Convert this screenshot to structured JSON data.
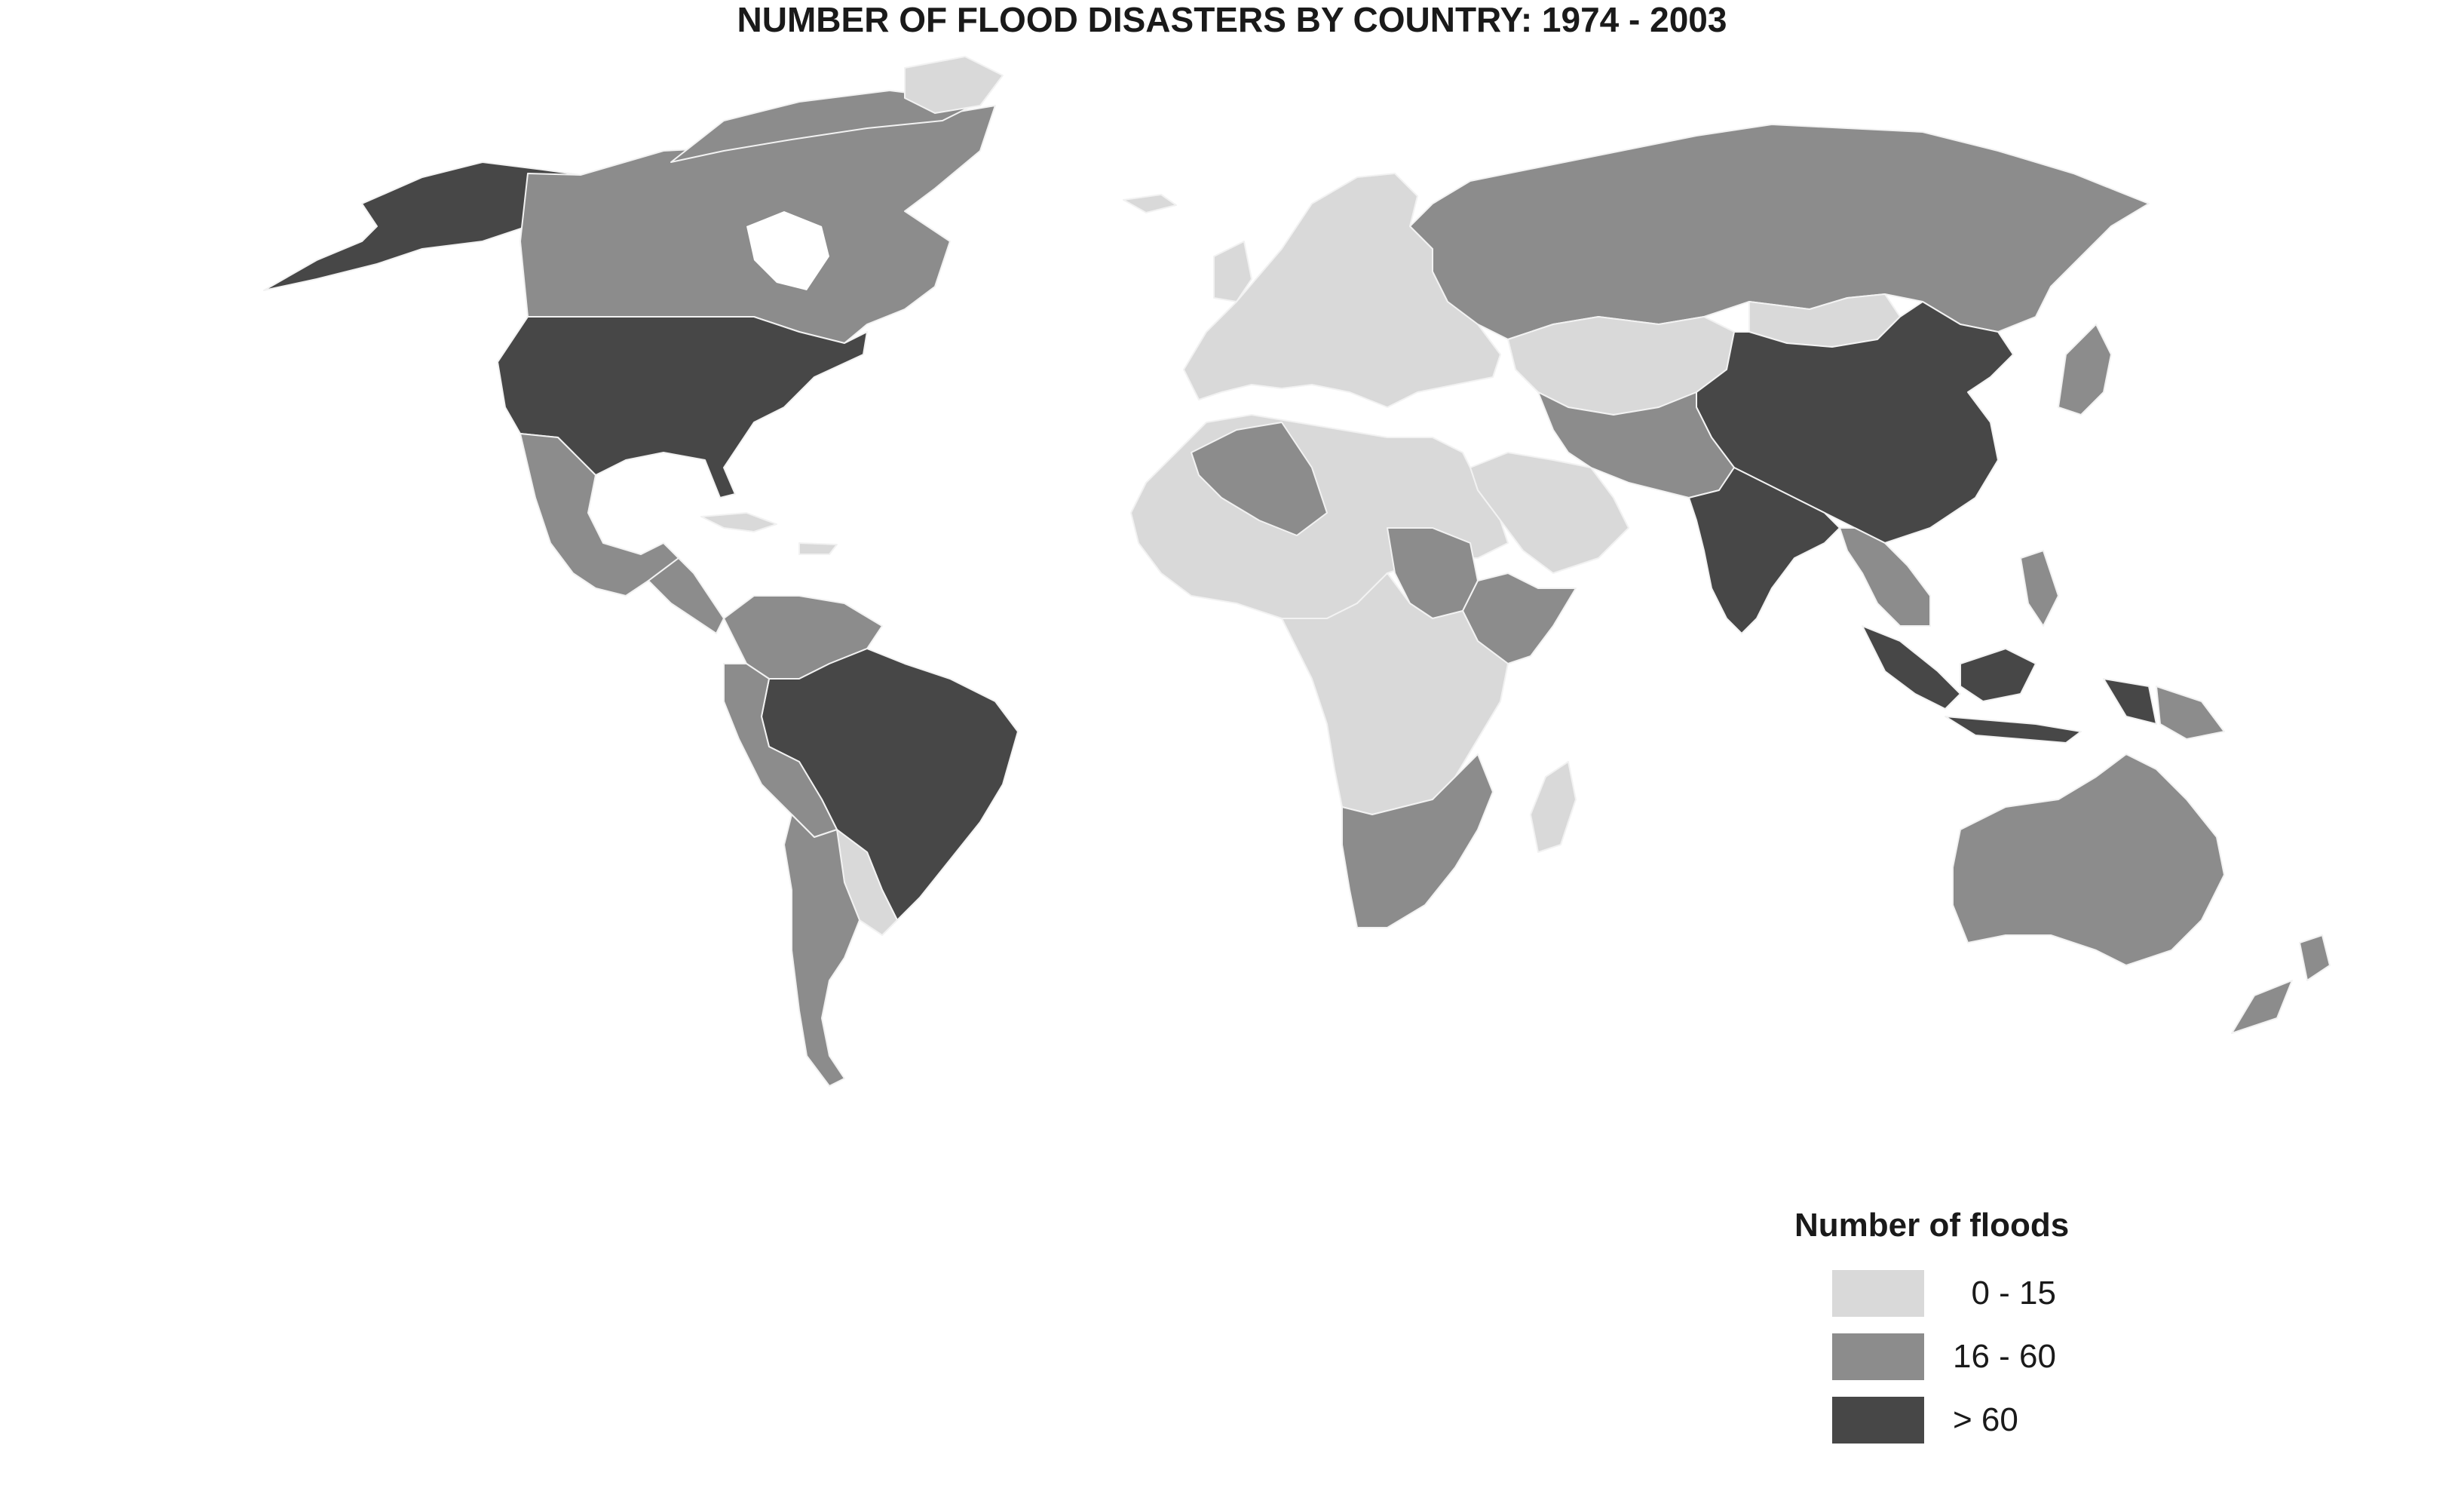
{
  "title": "NUMBER OF FLOOD DISASTERS BY COUNTRY:  1974 - 2003",
  "legend": {
    "title": "Number of floods",
    "classes": [
      {
        "label": "  0 - 15",
        "color": "#d9d9d9"
      },
      {
        "label": "16 - 60",
        "color": "#8c8c8c"
      },
      {
        "label": "> 60",
        "color": "#474747"
      }
    ]
  },
  "map": {
    "class_colors": {
      "low": "#d9d9d9",
      "mid": "#8c8c8c",
      "high": "#474747"
    },
    "regions": [
      {
        "name": "Alaska (USA)",
        "class": "high"
      },
      {
        "name": "Canada",
        "class": "mid"
      },
      {
        "name": "United States",
        "class": "high"
      },
      {
        "name": "Mexico",
        "class": "mid"
      },
      {
        "name": "Central America",
        "class": "mid"
      },
      {
        "name": "Caribbean",
        "class": "low"
      },
      {
        "name": "Colombia / Venezuela",
        "class": "mid"
      },
      {
        "name": "Brazil",
        "class": "high"
      },
      {
        "name": "Peru / Bolivia",
        "class": "mid"
      },
      {
        "name": "Argentina / Chile",
        "class": "mid"
      },
      {
        "name": "Paraguay / Uruguay",
        "class": "low"
      },
      {
        "name": "Europe",
        "class": "low"
      },
      {
        "name": "Russia",
        "class": "mid"
      },
      {
        "name": "Kazakhstan / Central Asia",
        "class": "low"
      },
      {
        "name": "Mongolia",
        "class": "low"
      },
      {
        "name": "China",
        "class": "high"
      },
      {
        "name": "India",
        "class": "high"
      },
      {
        "name": "Iran / Afghanistan / Pakistan",
        "class": "mid"
      },
      {
        "name": "Arabian Peninsula",
        "class": "low"
      },
      {
        "name": "North Africa",
        "class": "low"
      },
      {
        "name": "Algeria",
        "class": "mid"
      },
      {
        "name": "Sudan",
        "class": "mid"
      },
      {
        "name": "Ethiopia / Somalia",
        "class": "mid"
      },
      {
        "name": "Central Africa",
        "class": "low"
      },
      {
        "name": "Southern Africa",
        "class": "mid"
      },
      {
        "name": "Madagascar",
        "class": "low"
      },
      {
        "name": "Southeast Asia",
        "class": "mid"
      },
      {
        "name": "Indonesia",
        "class": "high"
      },
      {
        "name": "Philippines",
        "class": "mid"
      },
      {
        "name": "Japan",
        "class": "mid"
      },
      {
        "name": "Australia",
        "class": "mid"
      },
      {
        "name": "New Zealand",
        "class": "mid"
      },
      {
        "name": "Greenland",
        "class": "low"
      }
    ]
  }
}
